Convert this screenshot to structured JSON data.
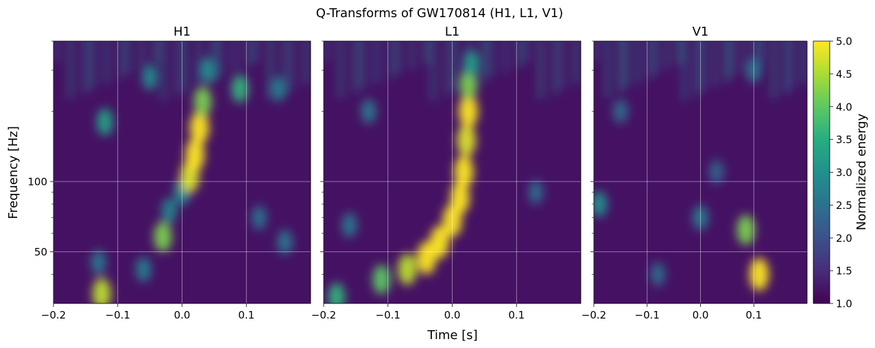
{
  "figure": {
    "suptitle": "Q-Transforms of GW170814 (H1, L1, V1)",
    "xlabel": "Time [s]",
    "ylabel": "Frequency [Hz]"
  },
  "chart_data": [
    {
      "type": "heatmap",
      "title": "H1",
      "xlim": [
        -0.2,
        0.2
      ],
      "xticks": [
        -0.2,
        -0.1,
        0.0,
        0.1
      ],
      "xtick_labels": [
        "−0.2",
        "−0.1",
        "0.0",
        "0.1"
      ],
      "ylim": [
        30,
        400
      ],
      "yscale": "log",
      "yticks": [
        50,
        100
      ],
      "ytick_labels": [
        "50",
        "100"
      ],
      "grid": true,
      "features": [
        {
          "t": -0.125,
          "f": 33,
          "e": 4.6
        },
        {
          "t": -0.13,
          "f": 45,
          "e": 2.6
        },
        {
          "t": -0.06,
          "f": 42,
          "e": 2.7
        },
        {
          "t": -0.03,
          "f": 58,
          "e": 4.2
        },
        {
          "t": -0.02,
          "f": 75,
          "e": 2.8
        },
        {
          "t": 0.0,
          "f": 90,
          "e": 3.0
        },
        {
          "t": 0.012,
          "f": 105,
          "e": 4.8
        },
        {
          "t": 0.02,
          "f": 130,
          "e": 5.0
        },
        {
          "t": 0.027,
          "f": 170,
          "e": 5.0
        },
        {
          "t": 0.032,
          "f": 220,
          "e": 4.2
        },
        {
          "t": 0.04,
          "f": 300,
          "e": 3.0
        },
        {
          "t": 0.09,
          "f": 250,
          "e": 3.6
        },
        {
          "t": -0.12,
          "f": 180,
          "e": 3.3
        },
        {
          "t": 0.12,
          "f": 70,
          "e": 2.5
        },
        {
          "t": 0.16,
          "f": 55,
          "e": 2.6
        },
        {
          "t": -0.05,
          "f": 280,
          "e": 2.9
        },
        {
          "t": 0.15,
          "f": 250,
          "e": 2.7
        }
      ]
    },
    {
      "type": "heatmap",
      "title": "L1",
      "xlim": [
        -0.2,
        0.2
      ],
      "xticks": [
        -0.2,
        -0.1,
        0.0,
        0.1
      ],
      "xtick_labels": [
        "−0.2",
        "−0.1",
        "0.0",
        "0.1"
      ],
      "ylim": [
        30,
        400
      ],
      "yscale": "log",
      "yticks": [
        50,
        100
      ],
      "ytick_labels": [
        "50",
        "100"
      ],
      "grid": true,
      "features": [
        {
          "t": -0.18,
          "f": 32,
          "e": 3.6
        },
        {
          "t": -0.11,
          "f": 38,
          "e": 4.0
        },
        {
          "t": -0.07,
          "f": 42,
          "e": 4.6
        },
        {
          "t": -0.04,
          "f": 47,
          "e": 5.0
        },
        {
          "t": -0.02,
          "f": 55,
          "e": 5.0
        },
        {
          "t": 0.0,
          "f": 68,
          "e": 5.0
        },
        {
          "t": 0.012,
          "f": 85,
          "e": 5.0
        },
        {
          "t": 0.018,
          "f": 110,
          "e": 5.0
        },
        {
          "t": 0.022,
          "f": 150,
          "e": 4.8
        },
        {
          "t": 0.025,
          "f": 200,
          "e": 5.0
        },
        {
          "t": 0.025,
          "f": 260,
          "e": 4.2
        },
        {
          "t": -0.16,
          "f": 65,
          "e": 2.6
        },
        {
          "t": 0.13,
          "f": 90,
          "e": 2.4
        },
        {
          "t": 0.03,
          "f": 320,
          "e": 3.2
        },
        {
          "t": -0.13,
          "f": 200,
          "e": 2.6
        }
      ]
    },
    {
      "type": "heatmap",
      "title": "V1",
      "xlim": [
        -0.2,
        0.2
      ],
      "xticks": [
        -0.2,
        -0.1,
        0.0,
        0.1
      ],
      "xtick_labels": [
        "−0.2",
        "−0.1",
        "0.0",
        "0.1"
      ],
      "ylim": [
        30,
        400
      ],
      "yscale": "log",
      "yticks": [
        50,
        100
      ],
      "ytick_labels": [
        "50",
        "100"
      ],
      "grid": true,
      "features": [
        {
          "t": 0.11,
          "f": 40,
          "e": 5.0
        },
        {
          "t": 0.085,
          "f": 62,
          "e": 4.2
        },
        {
          "t": -0.19,
          "f": 80,
          "e": 3.0
        },
        {
          "t": 0.0,
          "f": 70,
          "e": 2.7
        },
        {
          "t": -0.08,
          "f": 40,
          "e": 2.4
        },
        {
          "t": 0.03,
          "f": 110,
          "e": 2.3
        },
        {
          "t": 0.1,
          "f": 300,
          "e": 2.6
        },
        {
          "t": -0.15,
          "f": 200,
          "e": 2.4
        }
      ]
    }
  ],
  "colorbar": {
    "label": "Normalized energy",
    "colormap": "viridis",
    "range": [
      1.0,
      5.0
    ],
    "ticks": [
      1.0,
      1.5,
      2.0,
      2.5,
      3.0,
      3.5,
      4.0,
      4.5,
      5.0
    ],
    "tick_labels": [
      "1.0",
      "1.5",
      "2.0",
      "2.5",
      "3.0",
      "3.5",
      "4.0",
      "4.5",
      "5.0"
    ]
  }
}
